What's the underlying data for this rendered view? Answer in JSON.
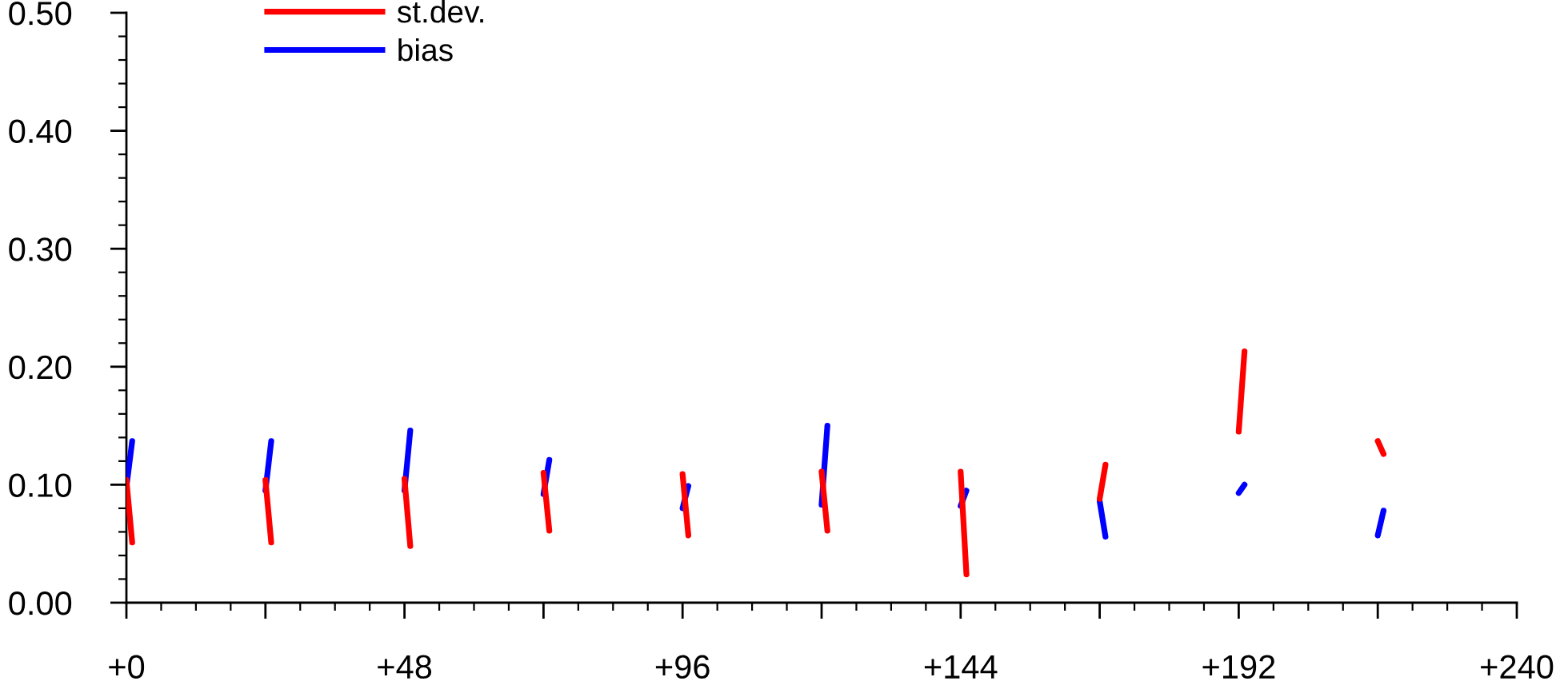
{
  "chart_data": {
    "type": "line",
    "series": [
      {
        "name": "st.dev.",
        "color": "#ff0000",
        "x": [
          0,
          1,
          12,
          24,
          25,
          36,
          48,
          49,
          60,
          72,
          73,
          84,
          96,
          97,
          108,
          120,
          121,
          132,
          144,
          145,
          156,
          168,
          169,
          180,
          192,
          193,
          204,
          216,
          217
        ],
        "values": [
          0.104,
          0.051,
          null,
          0.104,
          0.051,
          null,
          0.105,
          0.048,
          null,
          0.11,
          0.061,
          null,
          0.109,
          0.057,
          null,
          0.111,
          0.061,
          null,
          0.111,
          0.024,
          null,
          0.088,
          0.117,
          null,
          0.145,
          0.213,
          null,
          0.137,
          0.126
        ]
      },
      {
        "name": "bias",
        "color": "#0000ff",
        "x": [
          0,
          1,
          12,
          24,
          25,
          36,
          48,
          49,
          60,
          72,
          73,
          84,
          96,
          97,
          108,
          120,
          121,
          132,
          144,
          145,
          156,
          168,
          169,
          180,
          192,
          193,
          204,
          216,
          217
        ],
        "values": [
          0.098,
          0.137,
          null,
          0.095,
          0.137,
          null,
          0.095,
          0.146,
          null,
          0.092,
          0.121,
          null,
          0.08,
          0.099,
          null,
          0.083,
          0.15,
          null,
          0.082,
          0.095,
          null,
          0.086,
          0.056,
          null,
          0.093,
          0.1,
          null,
          0.057,
          0.078
        ]
      }
    ],
    "xlim": [
      0,
      240
    ],
    "xticks": [
      {
        "value": 0,
        "label": "+0"
      },
      {
        "value": 24,
        "label": null
      },
      {
        "value": 48,
        "label": "+48"
      },
      {
        "value": 72,
        "label": null
      },
      {
        "value": 96,
        "label": "+96"
      },
      {
        "value": 120,
        "label": null
      },
      {
        "value": 144,
        "label": "+144"
      },
      {
        "value": 168,
        "label": null
      },
      {
        "value": 192,
        "label": "+192"
      },
      {
        "value": 216,
        "label": null
      },
      {
        "value": 240,
        "label": "+240"
      }
    ],
    "ylim": [
      0,
      0.5
    ],
    "yticks": [
      {
        "value": 0,
        "label": "0.00"
      },
      {
        "value": 0.1,
        "label": "0.10"
      },
      {
        "value": 0.2,
        "label": "0.20"
      },
      {
        "value": 0.3,
        "label": "0.30"
      },
      {
        "value": 0.4,
        "label": "0.40"
      },
      {
        "value": 0.5,
        "label": "0.50"
      }
    ],
    "legend": "top left",
    "line_style": "solid",
    "grid": false
  }
}
